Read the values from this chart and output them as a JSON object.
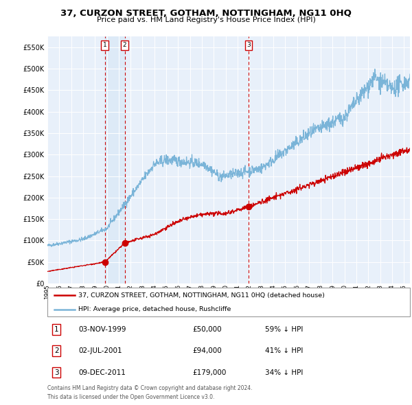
{
  "title": "37, CURZON STREET, GOTHAM, NOTTINGHAM, NG11 0HQ",
  "subtitle": "Price paid vs. HM Land Registry's House Price Index (HPI)",
  "legend_line1": "37, CURZON STREET, GOTHAM, NOTTINGHAM, NG11 0HQ (detached house)",
  "legend_line2": "HPI: Average price, detached house, Rushcliffe",
  "transactions": [
    {
      "num": 1,
      "date": "03-NOV-1999",
      "price": 50000,
      "pct": "59% ↓ HPI",
      "x_year": 1999.84
    },
    {
      "num": 2,
      "date": "02-JUL-2001",
      "price": 94000,
      "pct": "41% ↓ HPI",
      "x_year": 2001.5
    },
    {
      "num": 3,
      "date": "09-DEC-2011",
      "price": 179000,
      "pct": "34% ↓ HPI",
      "x_year": 2011.93
    }
  ],
  "footnote1": "Contains HM Land Registry data © Crown copyright and database right 2024.",
  "footnote2": "This data is licensed under the Open Government Licence v3.0.",
  "hpi_color": "#7ab4d8",
  "price_color": "#cc0000",
  "marker_color": "#cc0000",
  "dashed_color": "#cc0000",
  "highlight_color": "#ddeaf7",
  "bg_color": "#e8f0fa",
  "ylim": [
    0,
    575000
  ],
  "xlim_start": 1995.0,
  "xlim_end": 2025.5,
  "yticks": [
    0,
    50000,
    100000,
    150000,
    200000,
    250000,
    300000,
    350000,
    400000,
    450000,
    500000,
    550000
  ],
  "xtick_years": [
    1995,
    1996,
    1997,
    1998,
    1999,
    2000,
    2001,
    2002,
    2003,
    2004,
    2005,
    2006,
    2007,
    2008,
    2009,
    2010,
    2011,
    2012,
    2013,
    2014,
    2015,
    2016,
    2017,
    2018,
    2019,
    2020,
    2021,
    2022,
    2023,
    2024,
    2025
  ]
}
